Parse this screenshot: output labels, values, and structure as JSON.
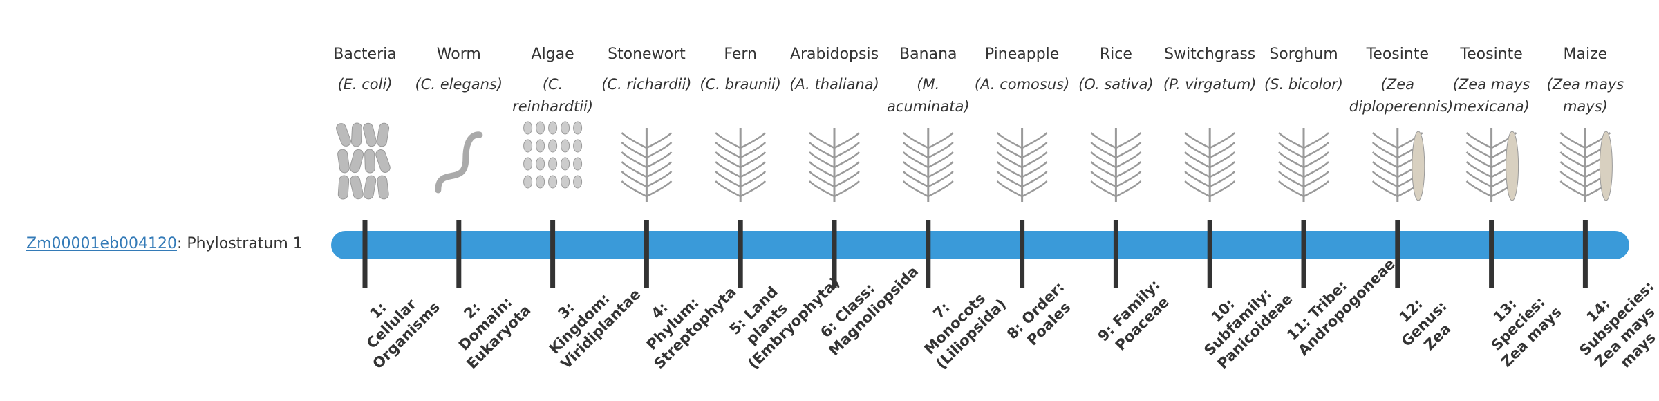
{
  "gene": {
    "id": "Zm00001eb004120",
    "label": ": Phylostratum 1"
  },
  "columns": [
    {
      "name": "Bacteria",
      "species": "(E. coli)",
      "stratum": "1: Cellular Organisms"
    },
    {
      "name": "Worm",
      "species": "(C. elegans)",
      "stratum": "2: Domain: Eukaryota"
    },
    {
      "name": "Algae",
      "species": "(C. reinhardtii)",
      "stratum": "3: Kingdom: Viridiplantae"
    },
    {
      "name": "Stonewort",
      "species": "(C. richardii)",
      "stratum": "4: Phylum: Streptophyta"
    },
    {
      "name": "Fern",
      "species": "(C. braunii)",
      "stratum": "5: Land plants (Embryophyta)"
    },
    {
      "name": "Arabidopsis",
      "species": "(A. thaliana)",
      "stratum": "6: Class: Magnoliopsida"
    },
    {
      "name": "Banana",
      "species": "(M. acuminata)",
      "stratum": "7: Monocots (Liliopsida)"
    },
    {
      "name": "Pineapple",
      "species": "(A. comosus)",
      "stratum": "8: Order: Poales"
    },
    {
      "name": "Rice",
      "species": "(O. sativa)",
      "stratum": "9: Family: Poaceae"
    },
    {
      "name": "Switchgrass",
      "species": "(P. virgatum)",
      "stratum": "10: Subfamily: Panicoideae"
    },
    {
      "name": "Sorghum",
      "species": "(S. bicolor)",
      "stratum": "11: Tribe: Andropogoneae"
    },
    {
      "name": "Teosinte",
      "species": "(Zea diploperennis)",
      "stratum": "12: Genus: Zea"
    },
    {
      "name": "Teosinte",
      "species": "(Zea mays mexicana)",
      "stratum": "13: Species: Zea mays"
    },
    {
      "name": "Maize",
      "species": "(Zea mays mays)",
      "stratum": "14: Subspecies: Zea mays mays"
    }
  ]
}
